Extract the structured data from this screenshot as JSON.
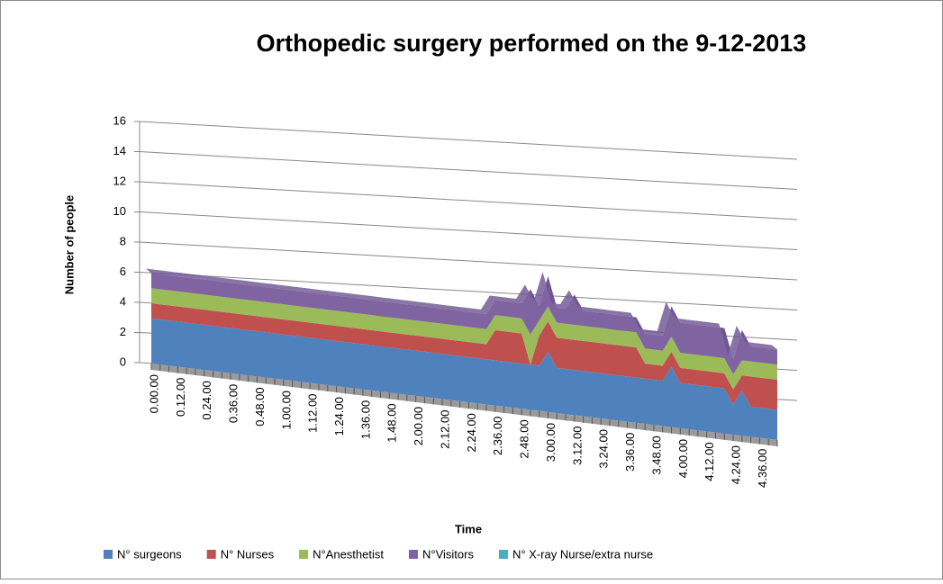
{
  "chart_data": {
    "type": "area3d",
    "title": "Orthopedic surgery performed on the 9-12-2013",
    "x_label": "Time",
    "y_label": "Number of people",
    "categories": [
      "0.00.00",
      null,
      null,
      "0.12.00",
      null,
      null,
      "0.24.00",
      null,
      null,
      "0.36.00",
      null,
      null,
      "0.48.00",
      null,
      null,
      "1.00.00",
      null,
      null,
      "1.12.00",
      null,
      null,
      "1.24.00",
      null,
      null,
      "1.36.00",
      null,
      null,
      "1.48.00",
      null,
      null,
      "2.00.00",
      null,
      null,
      "2.12.00",
      null,
      null,
      "2.24.00",
      null,
      null,
      "2.36.00",
      null,
      null,
      "2.48.00",
      null,
      null,
      "3.00.00",
      null,
      null,
      "3.12.00",
      null,
      null,
      "3.24.00",
      null,
      null,
      "3.36.00",
      null,
      null,
      "3.48.00",
      null,
      null,
      "4.00.00",
      null,
      null,
      "4.12.00",
      null,
      null,
      "4.24.00",
      null,
      null,
      "4.36.00",
      null,
      null
    ],
    "series": [
      {
        "name": "N° surgeons",
        "color": "#4f81bd",
        "values": [
          3,
          3,
          3,
          3,
          3,
          3,
          3,
          3,
          3,
          3,
          3,
          3,
          3,
          3,
          3,
          3,
          3,
          3,
          3,
          3,
          3,
          3,
          3,
          3,
          3,
          3,
          3,
          3,
          3,
          3,
          3,
          3,
          3,
          3,
          3,
          3,
          3,
          3,
          3,
          3,
          3,
          3,
          3,
          3,
          3,
          4,
          3,
          3,
          3,
          3,
          3,
          3,
          3,
          3,
          3,
          3,
          3,
          3,
          3,
          4,
          3,
          3,
          3,
          3,
          3,
          3,
          2,
          3,
          2,
          2,
          2,
          2
        ]
      },
      {
        "name": "N° Nurses",
        "color": "#c0504d",
        "values": [
          1,
          1,
          1,
          1,
          1,
          1,
          1,
          1,
          1,
          1,
          1,
          1,
          1,
          1,
          1,
          1,
          1,
          1,
          1,
          1,
          1,
          1,
          1,
          1,
          1,
          1,
          1,
          1,
          1,
          1,
          1,
          1,
          1,
          1,
          1,
          1,
          1,
          1,
          1,
          2,
          2,
          2,
          2,
          0,
          2,
          2,
          2,
          2,
          2,
          2,
          2,
          2,
          2,
          2,
          2,
          2,
          1,
          1,
          1,
          1,
          1,
          1,
          1,
          1,
          1,
          1,
          1,
          1,
          2,
          2,
          2,
          2
        ]
      },
      {
        "name": "N°Anesthetist",
        "color": "#9bbb59",
        "values": [
          1,
          1,
          1,
          1,
          1,
          1,
          1,
          1,
          1,
          1,
          1,
          1,
          1,
          1,
          1,
          1,
          1,
          1,
          1,
          1,
          1,
          1,
          1,
          1,
          1,
          1,
          1,
          1,
          1,
          1,
          1,
          1,
          1,
          1,
          1,
          1,
          1,
          1,
          1,
          1,
          1,
          1,
          1,
          2,
          1,
          1,
          1,
          1,
          1,
          1,
          1,
          1,
          1,
          1,
          1,
          1,
          1,
          1,
          1,
          1,
          1,
          1,
          1,
          1,
          1,
          1,
          1,
          1,
          1,
          1,
          1,
          1
        ]
      },
      {
        "name": "N°Visitors",
        "color": "#8064a2",
        "values": [
          1,
          1,
          1,
          1,
          1,
          1,
          1,
          1,
          1,
          1,
          1,
          1,
          1,
          1,
          1,
          1,
          1,
          1,
          1,
          1,
          1,
          1,
          1,
          1,
          1,
          1,
          1,
          1,
          1,
          1,
          1,
          1,
          1,
          1,
          1,
          1,
          1,
          1,
          1,
          1,
          1,
          1,
          1,
          3,
          1,
          2,
          1,
          1,
          2,
          1,
          1,
          1,
          1,
          1,
          1,
          1,
          1,
          1,
          1,
          2,
          2,
          2,
          2,
          2,
          2,
          2,
          1,
          2,
          1,
          1,
          1,
          1
        ]
      },
      {
        "name": "N° X-ray Nurse/extra nurse",
        "color": "#4bacc6",
        "values": [
          0,
          0,
          0,
          0,
          0,
          0,
          0,
          0,
          0,
          0,
          0,
          0,
          0,
          0,
          0,
          0,
          0,
          0,
          0,
          0,
          0,
          0,
          0,
          0,
          0,
          0,
          0,
          0,
          0,
          0,
          0,
          0,
          0,
          0,
          0,
          0,
          0,
          0,
          0,
          0,
          0,
          0,
          0,
          0,
          0,
          0,
          0,
          0,
          0,
          0,
          0,
          0,
          0,
          0,
          0,
          0,
          0,
          0,
          0,
          0,
          0,
          0,
          0,
          0,
          0,
          0,
          0,
          0,
          0,
          0,
          0,
          0
        ]
      }
    ],
    "ylim": [
      0,
      16
    ],
    "yticks": [
      0,
      2,
      4,
      6,
      8,
      10,
      12,
      14,
      16
    ],
    "grid": true,
    "legend": "bottom"
  }
}
